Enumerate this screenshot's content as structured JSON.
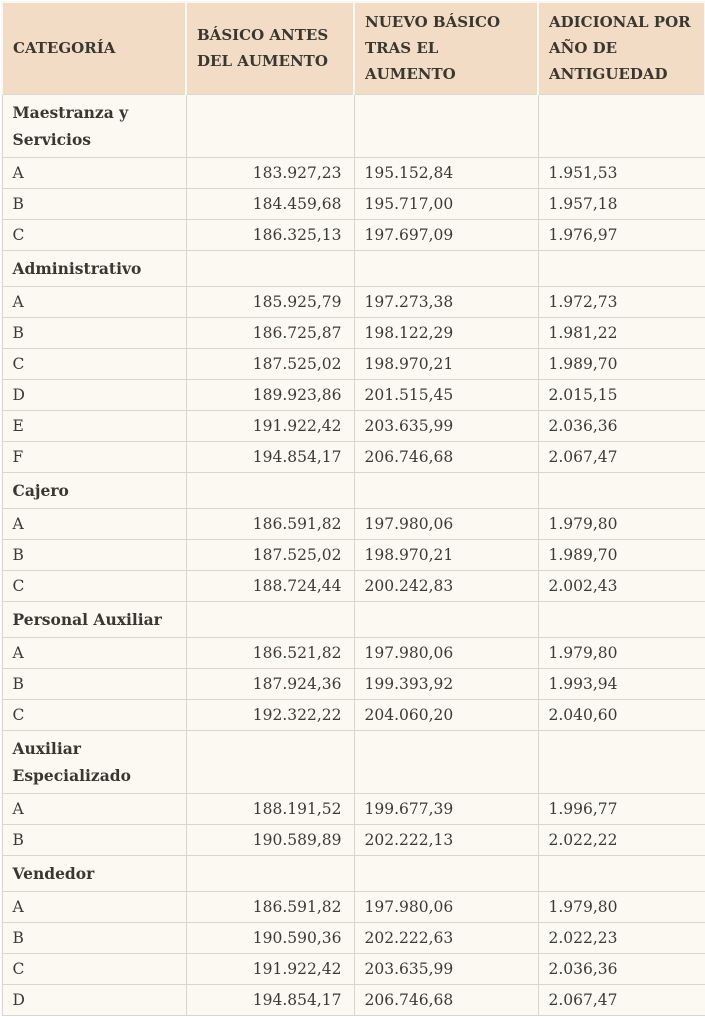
{
  "colors": {
    "header_bg": "#f3dcc6",
    "body_bg": "#fbf9f2",
    "border": "#d9d6d0",
    "text": "#3c3a35"
  },
  "table": {
    "columns": [
      {
        "label": "CATEGORÍA"
      },
      {
        "label": "BÁSICO ANTES DEL AUMENTO"
      },
      {
        "label": "NUEVO BÁSICO TRAS EL AUMENTO"
      },
      {
        "label": "ADICIONAL POR AÑO DE ANTIGUEDAD"
      }
    ],
    "rows": [
      {
        "type": "section",
        "label": "Maestranza y Servicios"
      },
      {
        "type": "data",
        "category": "A",
        "before": "183.927,23",
        "after": "195.152,84",
        "additional": "1.951,53"
      },
      {
        "type": "data",
        "category": "B",
        "before": "184.459,68",
        "after": "195.717,00",
        "additional": "1.957,18"
      },
      {
        "type": "data",
        "category": "C",
        "before": "186.325,13",
        "after": "197.697,09",
        "additional": "1.976,97"
      },
      {
        "type": "section",
        "label": "Administrativo"
      },
      {
        "type": "data",
        "category": "A",
        "before": "185.925,79",
        "after": "197.273,38",
        "additional": "1.972,73"
      },
      {
        "type": "data",
        "category": "B",
        "before": "186.725,87",
        "after": "198.122,29",
        "additional": "1.981,22"
      },
      {
        "type": "data",
        "category": "C",
        "before": "187.525,02",
        "after": "198.970,21",
        "additional": "1.989,70"
      },
      {
        "type": "data",
        "category": "D",
        "before": "189.923,86",
        "after": "201.515,45",
        "additional": "2.015,15"
      },
      {
        "type": "data",
        "category": "E",
        "before": "191.922,42",
        "after": "203.635,99",
        "additional": "2.036,36"
      },
      {
        "type": "data",
        "category": "F",
        "before": "194.854,17",
        "after": "206.746,68",
        "additional": "2.067,47"
      },
      {
        "type": "section",
        "label": "Cajero"
      },
      {
        "type": "data",
        "category": "A",
        "before": "186.591,82",
        "after": "197.980,06",
        "additional": "1.979,80"
      },
      {
        "type": "data",
        "category": "B",
        "before": "187.525,02",
        "after": "198.970,21",
        "additional": "1.989,70"
      },
      {
        "type": "data",
        "category": "C",
        "before": "188.724,44",
        "after": "200.242,83",
        "additional": "2.002,43"
      },
      {
        "type": "section",
        "label": "Personal Auxiliar"
      },
      {
        "type": "data",
        "category": "A",
        "before": "186.521,82",
        "after": "197.980,06",
        "additional": "1.979,80"
      },
      {
        "type": "data",
        "category": "B",
        "before": "187.924,36",
        "after": "199.393,92",
        "additional": "1.993,94"
      },
      {
        "type": "data",
        "category": "C",
        "before": "192.322,22",
        "after": "204.060,20",
        "additional": "2.040,60"
      },
      {
        "type": "section",
        "label": "Auxiliar Especializado"
      },
      {
        "type": "data",
        "category": "A",
        "before": "188.191,52",
        "after": "199.677,39",
        "additional": "1.996,77"
      },
      {
        "type": "data",
        "category": "B",
        "before": "190.589,89",
        "after": "202.222,13",
        "additional": "2.022,22"
      },
      {
        "type": "section",
        "label": "Vendedor"
      },
      {
        "type": "data",
        "category": "A",
        "before": "186.591,82",
        "after": "197.980,06",
        "additional": "1.979,80"
      },
      {
        "type": "data",
        "category": "B",
        "before": "190.590,36",
        "after": "202.222,63",
        "additional": "2.022,23"
      },
      {
        "type": "data",
        "category": "C",
        "before": "191.922,42",
        "after": "203.635,99",
        "additional": "2.036,36"
      },
      {
        "type": "data",
        "category": "D",
        "before": "194.854,17",
        "after": "206.746,68",
        "additional": "2.067,47"
      }
    ]
  }
}
